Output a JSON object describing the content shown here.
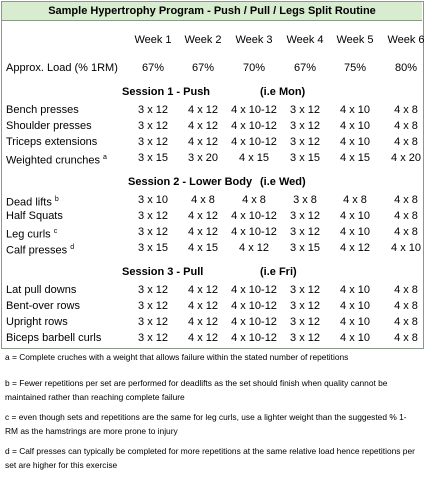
{
  "header": {
    "title": "Sample Hypertrophy Program - Push / Pull / Legs Split Routine"
  },
  "weeks": [
    "Week 1",
    "Week 2",
    "Week 3",
    "Week 4",
    "Week 5",
    "Week 6"
  ],
  "load": {
    "label": "Approx. Load (% 1RM)",
    "values": [
      "67%",
      "67%",
      "70%",
      "67%",
      "75%",
      "80%"
    ]
  },
  "sessions": [
    {
      "title": "Session 1 - Push",
      "day": "(i.e Mon)",
      "rows": [
        {
          "name": "Bench presses",
          "cells": [
            "3 x 12",
            "4 x 12",
            "4 x 10-12",
            "3 x 12",
            "4 x 10",
            "4 x 8"
          ]
        },
        {
          "name": "Shoulder presses",
          "cells": [
            "3 x 12",
            "4 x 12",
            "4 x 10-12",
            "3 x 12",
            "4 x 10",
            "4 x 8"
          ]
        },
        {
          "name": "Triceps extensions",
          "cells": [
            "3 x 12",
            "4 x 12",
            "4 x 10-12",
            "3 x 12",
            "4 x 10",
            "4 x 8"
          ]
        },
        {
          "name": "Weighted crunches",
          "note": "a",
          "cells": [
            "3 x 15",
            "3 x 20",
            "4 x 15",
            "3 x 15",
            "4 x 15",
            "4 x 20"
          ]
        }
      ]
    },
    {
      "title": "Session 2 - Lower Body",
      "day": "(i.e Wed)",
      "rows": [
        {
          "name": "Dead lifts",
          "note": "b",
          "cells": [
            "3 x 10",
            "4 x 8",
            "4 x 8",
            "3 x 8",
            "4 x 8",
            "4 x 8"
          ]
        },
        {
          "name": "Half Squats",
          "cells": [
            "3 x 12",
            "4 x 12",
            "4 x 10-12",
            "3 x 12",
            "4 x 10",
            "4 x 8"
          ]
        },
        {
          "name": "Leg curls",
          "note": "c",
          "cells": [
            "3 x 12",
            "4 x 12",
            "4 x 10-12",
            "3 x 12",
            "4 x 10",
            "4 x 8"
          ]
        },
        {
          "name": "Calf presses",
          "note": "d",
          "cells": [
            "3 x 15",
            "4 x 15",
            "4 x 12",
            "3 x 15",
            "4 x 12",
            "4 x 10"
          ]
        }
      ]
    },
    {
      "title": "Session 3 - Pull",
      "day": "(i.e Fri)",
      "rows": [
        {
          "name": "Lat pull downs",
          "cells": [
            "3 x 12",
            "4 x 12",
            "4 x 10-12",
            "3 x 12",
            "4 x 10",
            "4 x 8"
          ]
        },
        {
          "name": "Bent-over rows",
          "cells": [
            "3 x 12",
            "4 x 12",
            "4 x 10-12",
            "3 x 12",
            "4 x 10",
            "4 x 8"
          ]
        },
        {
          "name": "Upright rows",
          "cells": [
            "3 x 12",
            "4 x 12",
            "4 x 10-12",
            "3 x 12",
            "4 x 10",
            "4 x 8"
          ]
        },
        {
          "name": "Biceps barbell curls",
          "cells": [
            "3 x 12",
            "4 x 12",
            "4 x 10-12",
            "3 x 12",
            "4 x 10",
            "4 x 8"
          ]
        }
      ]
    }
  ],
  "notes": [
    "a = Complete cruches with a weight that allows failure within the stated number of repetitions",
    "b = Fewer repetitions per set are performed for deadlifts as the set should finish when quality cannot be maintained rather than reaching complete failure",
    "c = even though sets and repetitions are the same for leg curls, use a lighter weight than the suggested % 1-RM as the hamstrings are more prone to injury",
    "d = Calf presses can typically be completed for more repetitions at the same relative load hence repetitions per set are higher for this exercise"
  ]
}
